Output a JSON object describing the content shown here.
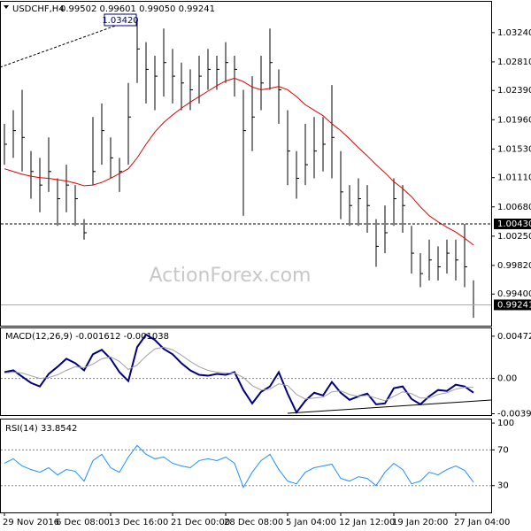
{
  "chart_data": [
    {
      "type": "ohlc",
      "title": "USDCHF,H4",
      "quote": "0.99502 0.99601 0.99050 0.99241",
      "watermark": "ActionForex.com",
      "color": "#000000",
      "categories": [
        "29 Nov 2016",
        null,
        null,
        null,
        null,
        null,
        "6 Dec 08:00",
        null,
        null,
        null,
        null,
        null,
        "13 Dec 16:00",
        null,
        null,
        null,
        null,
        null,
        null,
        "21 Dec 00:00",
        null,
        null,
        null,
        null,
        null,
        "28 Dec 08:00",
        null,
        null,
        null,
        null,
        null,
        null,
        "5 Jan 04:00",
        null,
        null,
        null,
        null,
        null,
        "12 Jan 12:00",
        null,
        null,
        null,
        null,
        null,
        "19 Jan 20:00",
        null,
        null,
        null,
        null,
        null,
        null,
        "27 Jan 04:00",
        null,
        null
      ],
      "high": [
        1.019,
        1.021,
        1.024,
        1.015,
        1.014,
        1.017,
        1.011,
        1.013,
        1.01,
        1.005,
        1.02,
        1.022,
        1.017,
        1.014,
        1.025,
        1.0342,
        1.031,
        1.029,
        1.033,
        1.03,
        1.028,
        1.027,
        1.029,
        1.03,
        1.029,
        1.031,
        1.029,
        1.024,
        1.026,
        1.029,
        1.033,
        1.027,
        1.021,
        1.015,
        1.019,
        1.02,
        1.02,
        1.0247,
        1.015,
        1.01,
        1.011,
        1.01,
        1.005,
        1.007,
        1.011,
        1.01,
        1.004,
        1.0,
        1.002,
        1.001,
        1.002,
        1.002,
        1.0043,
        0.99601
      ],
      "low": [
        1.013,
        1.014,
        1.012,
        1.008,
        1.006,
        1.009,
        1.004,
        1.006,
        1.004,
        1.002,
        1.01,
        1.013,
        1.011,
        1.009,
        1.013,
        1.025,
        1.022,
        1.021,
        1.023,
        1.022,
        1.021,
        1.021,
        1.022,
        1.024,
        1.024,
        1.025,
        1.023,
        1.0055,
        1.015,
        1.021,
        1.024,
        1.019,
        1.01,
        1.008,
        1.01,
        1.011,
        1.012,
        1.011,
        1.005,
        1.004,
        1.004,
        1.003,
        0.998,
        1.0,
        1.004,
        1.003,
        0.997,
        0.995,
        0.996,
        0.996,
        0.997,
        0.996,
        0.995,
        0.9905
      ],
      "close": [
        1.016,
        1.018,
        1.017,
        1.012,
        1.01,
        1.012,
        1.008,
        1.01,
        1.008,
        1.003,
        1.012,
        1.018,
        1.014,
        1.012,
        1.02,
        1.03,
        1.027,
        1.026,
        1.028,
        1.026,
        1.025,
        1.024,
        1.026,
        1.027,
        1.027,
        1.028,
        1.027,
        1.018,
        1.02,
        1.025,
        1.028,
        1.024,
        1.015,
        1.011,
        1.013,
        1.015,
        1.016,
        1.017,
        1.009,
        1.007,
        1.008,
        1.007,
        1.001,
        1.003,
        1.008,
        1.007,
        1.0,
        0.997,
        0.999,
        0.998,
        1.0,
        0.999,
        0.998,
        0.99241
      ],
      "overlay": {
        "color": "#e00000",
        "values": [
          1.0124,
          1.012,
          1.0116,
          1.0113,
          1.0111,
          1.011,
          1.0108,
          1.0106,
          1.0103,
          1.0099,
          1.01,
          1.0104,
          1.011,
          1.0117,
          1.0124,
          1.014,
          1.016,
          1.0178,
          1.0192,
          1.0203,
          1.0213,
          1.0222,
          1.023,
          1.0238,
          1.0246,
          1.0253,
          1.0257,
          1.0252,
          1.0244,
          1.024,
          1.0242,
          1.0245,
          1.024,
          1.023,
          1.0218,
          1.021,
          1.0202,
          1.019,
          1.018,
          1.0168,
          1.0155,
          1.0143,
          1.013,
          1.0118,
          1.0105,
          1.0095,
          1.0083,
          1.0068,
          1.0055,
          1.0046,
          1.0038,
          1.0031,
          1.0022,
          1.0012
        ]
      },
      "resistance": {
        "value": 1.0043,
        "label": "1.00430"
      },
      "current": 0.99241,
      "annotation": {
        "value": 1.0342,
        "label": "1.03420"
      },
      "ylim": [
        0.98935,
        1.03693
      ],
      "yticks": [
        {
          "value": 1.0324,
          "label": "1.03240"
        },
        {
          "value": 1.0281,
          "label": "1.02810"
        },
        {
          "value": 1.0239,
          "label": "1.02390"
        },
        {
          "value": 1.0196,
          "label": "1.01960"
        },
        {
          "value": 1.0153,
          "label": "1.01530"
        },
        {
          "value": 1.0111,
          "label": "1.01110"
        },
        {
          "value": 1.0068,
          "label": "1.00680"
        },
        {
          "value": 1.0025,
          "label": "1.00250"
        },
        {
          "value": 0.9982,
          "label": "0.99820"
        },
        {
          "value": 0.994,
          "label": "0.99400"
        }
      ]
    },
    {
      "type": "macd",
      "title": "MACD(12,26,9) -0.001612 -0.001038",
      "series": [
        {
          "color": "#000080",
          "values": [
            0.0007,
            0.0009,
            0.0002,
            -0.0005,
            -0.0009,
            0.0005,
            0.0013,
            0.0022,
            0.0017,
            0.0009,
            0.0027,
            0.0032,
            0.0022,
            0.0007,
            -0.0003,
            0.0035,
            0.0049,
            0.0043,
            0.0033,
            0.0027,
            0.0017,
            0.0009,
            0.0004,
            0.0003,
            0.0005,
            0.0004,
            0.0007,
            -0.0013,
            -0.0028,
            -0.0015,
            -0.0009,
            0.0007,
            -0.0017,
            -0.0038,
            -0.0025,
            -0.0016,
            -0.0019,
            -0.0004,
            -0.0016,
            -0.0024,
            -0.002,
            -0.0017,
            -0.0029,
            -0.0028,
            -0.0011,
            -0.0009,
            -0.0023,
            -0.0029,
            -0.002,
            -0.0013,
            -0.0014,
            -0.0007,
            -0.0009,
            -0.0016
          ]
        },
        {
          "color": "#a0a0a0",
          "values": [
            0.0006,
            0.0007,
            0.0006,
            0.0003,
            0.0,
            0.0001,
            0.0004,
            0.0009,
            0.0013,
            0.0012,
            0.0016,
            0.0022,
            0.0024,
            0.0019,
            0.001,
            0.0015,
            0.0025,
            0.0033,
            0.0035,
            0.0032,
            0.0026,
            0.0019,
            0.0013,
            0.0009,
            0.0007,
            0.0006,
            0.0006,
            0.0001,
            -0.0008,
            -0.0013,
            -0.0012,
            -0.0006,
            -0.0008,
            -0.0018,
            -0.0023,
            -0.0022,
            -0.0021,
            -0.0015,
            -0.0014,
            -0.0018,
            -0.002,
            -0.0019,
            -0.0022,
            -0.0025,
            -0.002,
            -0.0015,
            -0.0017,
            -0.0022,
            -0.0022,
            -0.0018,
            -0.0016,
            -0.0012,
            -0.001,
            -0.001
          ]
        }
      ],
      "levels": [
        0
      ],
      "ylim": [
        -0.0041,
        0.0056
      ],
      "yticks": [
        0.004721,
        {
          "value": 0,
          "label": "0.00"
        },
        -0.003949
      ]
    },
    {
      "type": "line",
      "title": "RSI(14) 33.8542",
      "series": [
        {
          "color": "#1e90ff",
          "values": [
            55,
            60,
            52,
            48,
            45,
            50,
            42,
            48,
            46,
            35,
            58,
            65,
            50,
            45,
            62,
            75,
            65,
            60,
            62,
            55,
            52,
            50,
            58,
            60,
            58,
            62,
            55,
            28,
            45,
            58,
            65,
            48,
            35,
            32,
            45,
            50,
            52,
            54,
            38,
            35,
            40,
            38,
            30,
            45,
            55,
            48,
            32,
            35,
            45,
            42,
            48,
            52,
            47,
            33.8542
          ]
        }
      ],
      "levels": [
        70,
        30
      ],
      "ylim": [
        0,
        104
      ],
      "yticks": [
        100,
        70,
        30
      ]
    }
  ]
}
